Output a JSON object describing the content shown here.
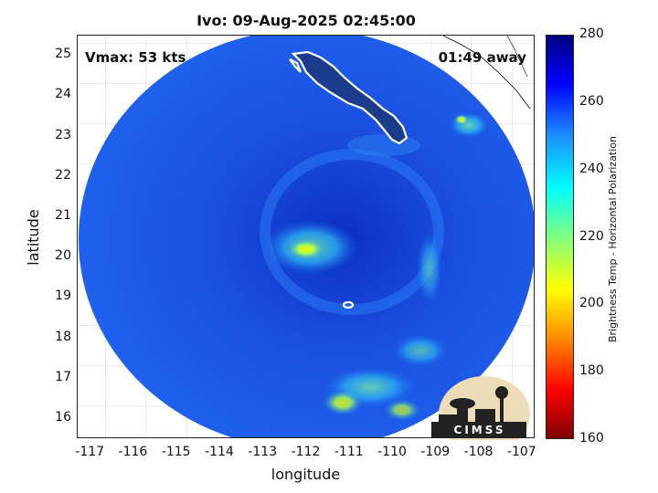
{
  "title": "Ivo: 09-Aug-2025 02:45:00",
  "overlays": {
    "vmax": "Vmax: 53 kts",
    "time_away": "01:49 away"
  },
  "axes": {
    "xlabel": "longitude",
    "ylabel": "latitude",
    "xticks": [
      "-117",
      "-116",
      "-115",
      "-114",
      "-113",
      "-112",
      "-111",
      "-110",
      "-109",
      "-108",
      "-107"
    ],
    "yticks": [
      "16",
      "17",
      "18",
      "19",
      "20",
      "21",
      "22",
      "23",
      "24",
      "25"
    ],
    "xlim": [
      -117.3,
      -106.7
    ],
    "ylim": [
      15.5,
      25.5
    ]
  },
  "colorbar": {
    "label": "Brightness Temp - Horizontal Polarization",
    "ticks": [
      "280",
      "260",
      "240",
      "220",
      "200",
      "180",
      "160"
    ],
    "range": [
      160,
      280
    ],
    "colors": [
      "#7f0000",
      "#ff0000",
      "#ff8c00",
      "#ffff00",
      "#7fff7f",
      "#00ffff",
      "#1e90ff",
      "#0000ff",
      "#00007f"
    ]
  },
  "map": {
    "background_color": "#1a55e8",
    "center_color": "#0f3ad0",
    "warm_band_color": "#6fe08a",
    "hot_spot_color": "#ffe000",
    "land_outline_color": "#ffffff"
  },
  "logo": {
    "text": "CIMSS"
  }
}
